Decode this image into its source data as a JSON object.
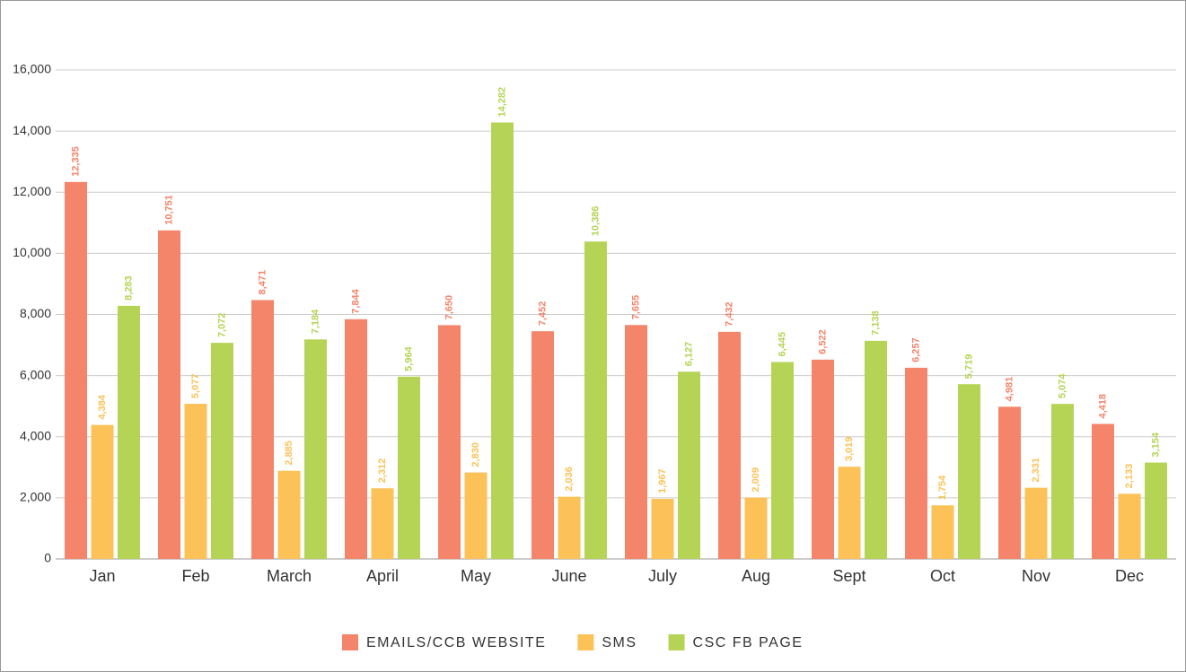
{
  "chart_data": {
    "type": "bar",
    "categories": [
      "Jan",
      "Feb",
      "March",
      "April",
      "May",
      "June",
      "July",
      "Aug",
      "Sept",
      "Oct",
      "Nov",
      "Dec"
    ],
    "series": [
      {
        "name": "EMAILS/CCB WEBSITE",
        "color": "#f4846a",
        "values": [
          12335,
          10751,
          8471,
          7844,
          7650,
          7452,
          7655,
          7432,
          6522,
          6257,
          4981,
          4418
        ],
        "value_labels": [
          "12,335",
          "10,751",
          "8,471",
          "7,844",
          "7,650",
          "7,452",
          "7,655",
          "7,432",
          "6,522",
          "6,257",
          "4,981",
          "4,418"
        ]
      },
      {
        "name": "SMS",
        "color": "#fcc257",
        "values": [
          4384,
          5077,
          2885,
          2312,
          2830,
          2036,
          1967,
          2009,
          3019,
          1754,
          2331,
          2133
        ],
        "value_labels": [
          "4,384",
          "5,077",
          "2,885",
          "2,312",
          "2,830",
          "2,036",
          "1,967",
          "2,009",
          "3,019",
          "1,754",
          "2,331",
          "2,133"
        ]
      },
      {
        "name": "CSC FB PAGE",
        "color": "#b5d455",
        "values": [
          8283,
          7072,
          7184,
          5964,
          14282,
          10386,
          6127,
          6445,
          7138,
          5719,
          5074,
          3154
        ],
        "value_labels": [
          "8,283",
          "7,072",
          "7,184",
          "5,964",
          "14,282",
          "10,386",
          "6,127",
          "6,445",
          "7,138",
          "5,719",
          "5,074",
          "3,154"
        ]
      }
    ],
    "ylim": [
      0,
      16000
    ],
    "yticks": [
      0,
      {
        "value": 2000,
        "label": "2,000"
      },
      {
        "value": 4000,
        "label": "4,000"
      },
      {
        "value": 6000,
        "label": "6,000"
      },
      {
        "value": 8000,
        "label": "8,000"
      },
      {
        "value": 10000,
        "label": "10,000"
      },
      {
        "value": 12000,
        "label": "12,000"
      },
      {
        "value": 14000,
        "label": "14,000"
      },
      {
        "value": 16000,
        "label": "16,000"
      }
    ],
    "grid": true,
    "legend": "bottom"
  }
}
